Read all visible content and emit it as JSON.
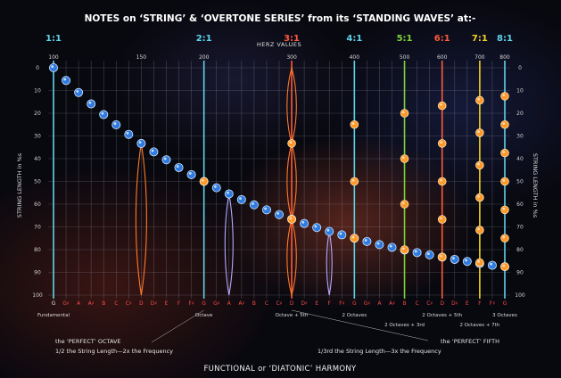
{
  "chart_data": {
    "type": "scatter",
    "title": "NOTES on ‘STRING’ & ‘OVERTONE SERIES’ from its ‘STANDING WAVES’ at:-",
    "top_axis_label": "HERZ VALUES",
    "ylabel_left": "STRING LENGTH in %s",
    "ylabel_right": "STRING LENGTH in %s",
    "ylim": [
      0,
      100
    ],
    "y_ticks": [
      0,
      10,
      20,
      30,
      40,
      50,
      60,
      70,
      80,
      90,
      100
    ],
    "notes": [
      "G",
      "G♯",
      "A",
      "A♯",
      "B",
      "C",
      "C♯",
      "D",
      "D♯",
      "E",
      "F",
      "F♯",
      "G",
      "G♯",
      "A",
      "A♯",
      "B",
      "C",
      "C♯",
      "D",
      "D♯",
      "E",
      "F",
      "F♯",
      "G",
      "G♯",
      "A",
      "A♯",
      "B",
      "C",
      "C♯",
      "D",
      "D♯",
      "E",
      "F",
      "F♯",
      "G"
    ],
    "note_colors": {
      "white": "#e8e8e8",
      "red": "#ff4a4a"
    },
    "note_is_red": [
      0,
      1,
      1,
      1,
      1,
      1,
      1,
      1,
      1,
      1,
      1,
      1,
      1,
      1,
      1,
      1,
      1,
      1,
      1,
      1,
      1,
      1,
      1,
      1,
      1,
      1,
      1,
      1,
      1,
      1,
      1,
      1,
      1,
      1,
      1,
      1,
      1
    ],
    "hz_ticks": [
      {
        "note_index": 0,
        "label": "100"
      },
      {
        "note_index": 7,
        "label": "150"
      },
      {
        "note_index": 12,
        "label": "200"
      },
      {
        "note_index": 19,
        "label": "300"
      },
      {
        "note_index": 24,
        "label": "400"
      },
      {
        "note_index": 28,
        "label": "500"
      },
      {
        "note_index": 31,
        "label": "600"
      },
      {
        "note_index": 34,
        "label": "700"
      },
      {
        "note_index": 36,
        "label": "800"
      }
    ],
    "ratios": [
      {
        "label": "1:1",
        "note_index": 0,
        "color": "#5fd3e8"
      },
      {
        "label": "2:1",
        "note_index": 12,
        "color": "#5fd3e8"
      },
      {
        "label": "3:1",
        "note_index": 19,
        "color": "#ff5a3a"
      },
      {
        "label": "4:1",
        "note_index": 24,
        "color": "#5fd3e8"
      },
      {
        "label": "5:1",
        "note_index": 28,
        "color": "#7ed23a"
      },
      {
        "label": "6:1",
        "note_index": 31,
        "color": "#ff5a3a"
      },
      {
        "label": "7:1",
        "note_index": 34,
        "color": "#f5d020"
      },
      {
        "label": "8:1",
        "note_index": 36,
        "color": "#5fd3e8"
      }
    ],
    "string_length_curve": [
      0,
      5.6,
      10.9,
      15.9,
      20.6,
      25.1,
      29.3,
      33.3,
      37,
      40.5,
      43.9,
      47,
      50,
      52.8,
      55.5,
      58,
      60.3,
      62.5,
      64.6,
      66.6,
      68.5,
      70.3,
      72,
      73.5,
      75,
      76.4,
      77.8,
      79,
      80.2,
      81.3,
      82.3,
      83.3,
      84.3,
      85.2,
      86.1,
      86.9,
      87.5
    ],
    "overtone_nodes": [
      {
        "note_index": 24,
        "color": "#ff9a2a",
        "y": [
          25,
          50,
          75
        ]
      },
      {
        "note_index": 28,
        "color": "#ff9a2a",
        "y": [
          20,
          40,
          60,
          80
        ]
      },
      {
        "note_index": 31,
        "color": "#ff9a2a",
        "y": [
          16.7,
          33.3,
          50,
          66.7,
          83.3
        ]
      },
      {
        "note_index": 34,
        "color": "#ff9a2a",
        "y": [
          14.3,
          28.6,
          42.9,
          57.1,
          71.4,
          85.7
        ]
      },
      {
        "note_index": 36,
        "color": "#ff9a2a",
        "y": [
          12.5,
          25,
          37.5,
          50,
          62.5,
          75,
          87.5
        ]
      },
      {
        "note_index": 12,
        "color": "#ff9a2a",
        "y": [
          50
        ]
      },
      {
        "note_index": 19,
        "color": "#ff9a2a",
        "y": [
          33.3,
          66.7
        ]
      }
    ],
    "interval_labels": [
      {
        "note_index": 0,
        "label": "Fundamental",
        "row": 0
      },
      {
        "note_index": 12,
        "label": "Octave",
        "row": 0
      },
      {
        "note_index": 19,
        "label": "Octave + 5th",
        "row": 0
      },
      {
        "note_index": 24,
        "label": "2 Octaves",
        "row": 0
      },
      {
        "note_index": 28,
        "label": "2 Octaves + 3rd",
        "row": 1
      },
      {
        "note_index": 31,
        "label": "2 Octaves + 5th",
        "row": 0
      },
      {
        "note_index": 34,
        "label": "2 Octaves + 7th",
        "row": 1
      },
      {
        "note_index": 36,
        "label": "3 Octaves",
        "row": 0
      }
    ],
    "annotations": {
      "octave_title": "the ‘PERFECT’ OCTAVE",
      "octave_desc": "1/2 the String Length—2x the Frequency",
      "fifth_title": "the ‘PERFECT’ FIFTH",
      "fifth_desc": "1/3rd the String Length—3x the Frequency"
    },
    "footer": "FUNCTIONAL or ‘DIATONIC’ HARMONY"
  }
}
